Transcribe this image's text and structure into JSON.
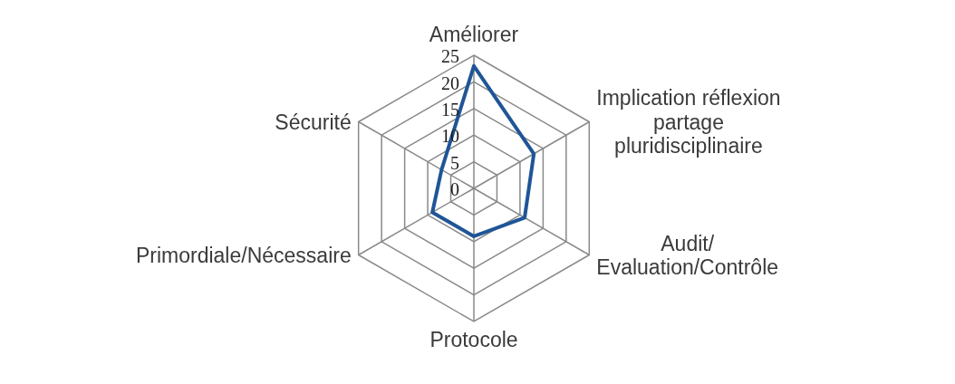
{
  "chart_data": {
    "type": "radar",
    "categories": [
      "Améliorer",
      "Implication réflexion partage pluridisciplinaire",
      "Audit/ Evaluation/Contrôle",
      "Protocole",
      "Primordiale/Nécessaire",
      "Sécurité"
    ],
    "series": [
      {
        "color": "#1f5597",
        "values": [
          23,
          13,
          11,
          9,
          9,
          7
        ]
      }
    ],
    "ylim": [
      0,
      25
    ],
    "yticks": [
      0,
      5,
      10,
      15,
      20,
      25
    ],
    "grid": true,
    "marker": "none"
  }
}
